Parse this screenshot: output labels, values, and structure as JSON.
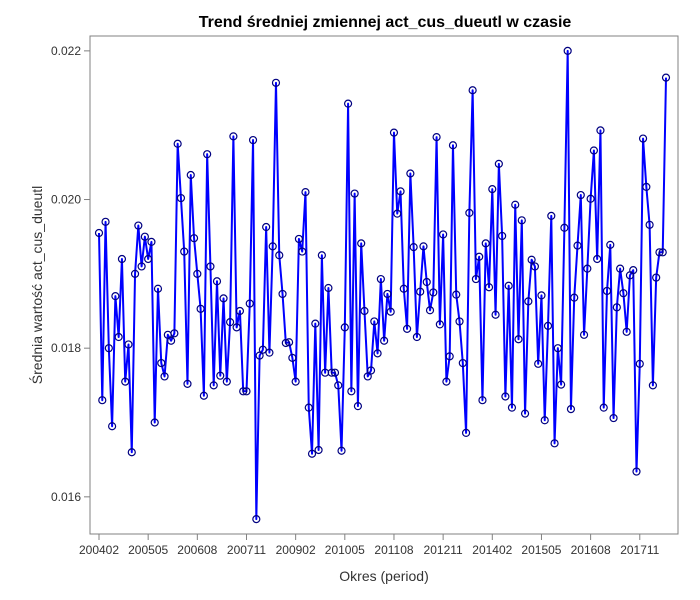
{
  "chart_data": {
    "type": "line",
    "title": "Trend średniej zmiennej act_cus_dueutl w czasie",
    "xlabel": "Okres (period)",
    "ylabel": "Średnia wartość act_cus_dueutl",
    "x_ticks": [
      "200402",
      "200505",
      "200608",
      "200711",
      "200902",
      "201005",
      "201108",
      "201211",
      "201402",
      "201505",
      "201608",
      "201711"
    ],
    "y_ticks": [
      "0.016",
      "0.018",
      "0.020",
      "0.022"
    ],
    "ylim": [
      0.0155,
      0.0222
    ],
    "grid": false,
    "legend": "none",
    "colors": {
      "line": "#0000ff",
      "marker_edge": "#000080"
    },
    "series": [
      {
        "values": [
          0.01955,
          0.0173,
          0.0197,
          0.018,
          0.01695,
          0.0187,
          0.01815,
          0.0192,
          0.01755,
          0.01805,
          0.0166,
          0.019,
          0.01965,
          0.0191,
          0.0195,
          0.0192,
          0.01943,
          0.017,
          0.0188,
          0.0178,
          0.01762,
          0.01818,
          0.0181,
          0.0182,
          0.02075,
          0.02002,
          0.0193,
          0.01752,
          0.02033,
          0.01948,
          0.019,
          0.01853,
          0.01736,
          0.02061,
          0.0191,
          0.0175,
          0.0189,
          0.01763,
          0.01867,
          0.01755,
          0.01835,
          0.02085,
          0.01828,
          0.0185,
          0.01742,
          0.01742,
          0.0186,
          0.0208,
          0.0157,
          0.0179,
          0.01798,
          0.01963,
          0.01794,
          0.01937,
          0.02157,
          0.01925,
          0.01873,
          0.01807,
          0.01808,
          0.01787,
          0.01755,
          0.01947,
          0.0193,
          0.0201,
          0.0172,
          0.01658,
          0.01833,
          0.01663,
          0.01925,
          0.01767,
          0.01881,
          0.01767,
          0.01767,
          0.0175,
          0.01662,
          0.01828,
          0.02129,
          0.01742,
          0.02008,
          0.01722,
          0.01941,
          0.0185,
          0.01762,
          0.0177,
          0.01836,
          0.01793,
          0.01893,
          0.0181,
          0.01873,
          0.01849,
          0.0209,
          0.01981,
          0.02011,
          0.0188,
          0.01826,
          0.02035,
          0.01936,
          0.01815,
          0.01876,
          0.01937,
          0.01889,
          0.01851,
          0.01875,
          0.02084,
          0.01832,
          0.01953,
          0.01755,
          0.01789,
          0.02073,
          0.01872,
          0.01836,
          0.0178,
          0.01686,
          0.01982,
          0.02147,
          0.01893,
          0.01923,
          0.0173,
          0.01941,
          0.01882,
          0.02014,
          0.01845,
          0.02048,
          0.01951,
          0.01735,
          0.01884,
          0.0172,
          0.01993,
          0.01812,
          0.01972,
          0.01712,
          0.01863,
          0.01919,
          0.0191,
          0.01779,
          0.01871,
          0.01703,
          0.0183,
          0.01978,
          0.01672,
          0.018,
          0.01751,
          0.01962,
          0.022,
          0.01718,
          0.01868,
          0.01938,
          0.02006,
          0.01818,
          0.01907,
          0.02001,
          0.02066,
          0.0192,
          0.02093,
          0.0172,
          0.01877,
          0.01939,
          0.01706,
          0.01855,
          0.01907,
          0.01874,
          0.01822,
          0.01898,
          0.01905,
          0.01634,
          0.01779,
          0.02082,
          0.02017,
          0.01966,
          0.0175,
          0.01895,
          0.01929,
          0.01929,
          0.02164
        ]
      }
    ]
  }
}
